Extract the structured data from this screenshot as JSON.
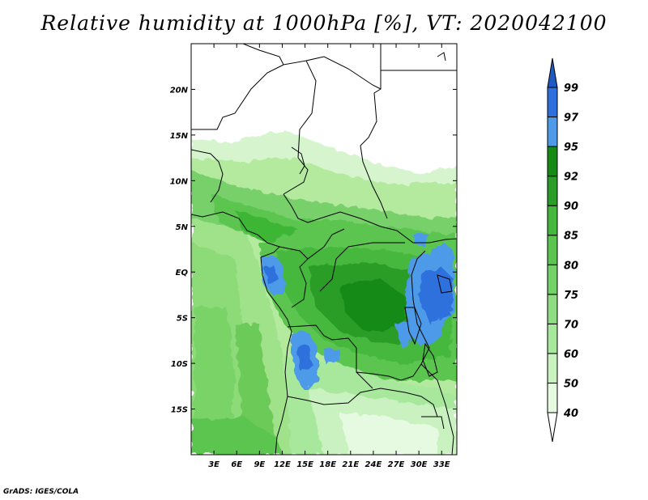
{
  "title": "Relative humidity at 1000hPa [%], VT: 2020042100",
  "credit": "GrADS: IGES/COLA",
  "axes": {
    "lat_labels": [
      "20N",
      "15N",
      "10N",
      "5N",
      "EQ",
      "5S",
      "10S",
      "15S"
    ],
    "lat_values": [
      20,
      15,
      10,
      5,
      0,
      -5,
      -10,
      -15
    ],
    "lon_labels": [
      "3E",
      "6E",
      "9E",
      "12E",
      "15E",
      "18E",
      "21E",
      "24E",
      "27E",
      "30E",
      "33E"
    ],
    "lon_values": [
      3,
      6,
      9,
      12,
      15,
      18,
      21,
      24,
      27,
      30,
      33
    ],
    "lat_range": [
      -20,
      25
    ],
    "lon_range": [
      0,
      35
    ]
  },
  "colorbar": {
    "levels": [
      "40",
      "50",
      "60",
      "70",
      "75",
      "80",
      "85",
      "90",
      "92",
      "95",
      "97",
      "99"
    ],
    "colors": [
      "#ffffff",
      "#e6fae1",
      "#c9f2c0",
      "#a8e89d",
      "#8fdd82",
      "#74d168",
      "#5cc550",
      "#44b83c",
      "#2a9d28",
      "#158a14",
      "#4d9be8",
      "#2d6fdc",
      "#1f5ac4"
    ]
  },
  "chart_data": {
    "type": "heatmap",
    "variable": "Relative humidity at 1000hPa",
    "units": "%",
    "valid_time": "2020042100",
    "lon_range": [
      0,
      35
    ],
    "lat_range": [
      -20,
      25
    ],
    "contour_levels": [
      40,
      50,
      60,
      70,
      75,
      80,
      85,
      90,
      92,
      95,
      97,
      99
    ],
    "regions_above_95": [
      "Gabon coast near equator",
      "Lake Victoria / Lake Tanganyika area",
      "Angola-Congo border near 15E 10S"
    ]
  }
}
